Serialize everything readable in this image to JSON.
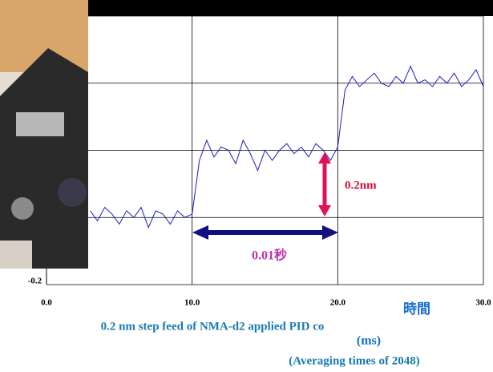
{
  "chart_data": {
    "type": "line",
    "title": "0.2 nm step feed of NMA-d2 applied PID co",
    "subtitle": "(Averaging times of 2048)",
    "xlabel": "時間",
    "xunit": "(ms)",
    "annotations": [
      "0.2nm",
      "0.01秒"
    ],
    "x": [
      3,
      3.5,
      4,
      4.5,
      5,
      5.5,
      6,
      6.5,
      7,
      7.5,
      8,
      8.5,
      9,
      9.5,
      10,
      10.5,
      11,
      11.5,
      12,
      12.5,
      13,
      13.5,
      14,
      14.5,
      15,
      15.5,
      16,
      16.5,
      17,
      17.5,
      18,
      18.5,
      19,
      19.5,
      20,
      20.5,
      21,
      21.5,
      22,
      22.5,
      23,
      23.5,
      24,
      24.5,
      25,
      25.5,
      26,
      26.5,
      27,
      27.5,
      28,
      28.5,
      29,
      29.5,
      30
    ],
    "series": [
      {
        "color": "#1a1acc",
        "values": [
          0.02,
          -0.01,
          0.03,
          0.01,
          -0.02,
          0.02,
          0.0,
          0.03,
          -0.03,
          0.02,
          0.01,
          -0.02,
          0.02,
          0.0,
          0.01,
          0.17,
          0.23,
          0.18,
          0.21,
          0.2,
          0.16,
          0.23,
          0.19,
          0.14,
          0.2,
          0.17,
          0.2,
          0.22,
          0.19,
          0.21,
          0.18,
          0.22,
          0.2,
          0.17,
          0.21,
          0.38,
          0.42,
          0.39,
          0.41,
          0.43,
          0.4,
          0.39,
          0.42,
          0.4,
          0.45,
          0.4,
          0.41,
          0.39,
          0.42,
          0.4,
          0.43,
          0.39,
          0.41,
          0.44,
          0.39
        ]
      }
    ],
    "xlim": [
      0,
      30
    ],
    "xticks": [
      {
        "value": 0,
        "label": "0.0"
      },
      {
        "value": 10,
        "label": "10.0"
      },
      {
        "value": 20,
        "label": "20.0"
      },
      {
        "value": 30,
        "label": "30.0"
      }
    ],
    "ylim": [
      -0.2,
      0.6
    ],
    "yticks": [
      {
        "value": -0.2,
        "label": "-0.2"
      },
      {
        "value": 0,
        "label": null
      },
      {
        "value": 0.2,
        "label": null
      },
      {
        "value": 0.4,
        "label": null
      },
      {
        "value": 0.6,
        "label": null
      }
    ],
    "grid": true
  }
}
